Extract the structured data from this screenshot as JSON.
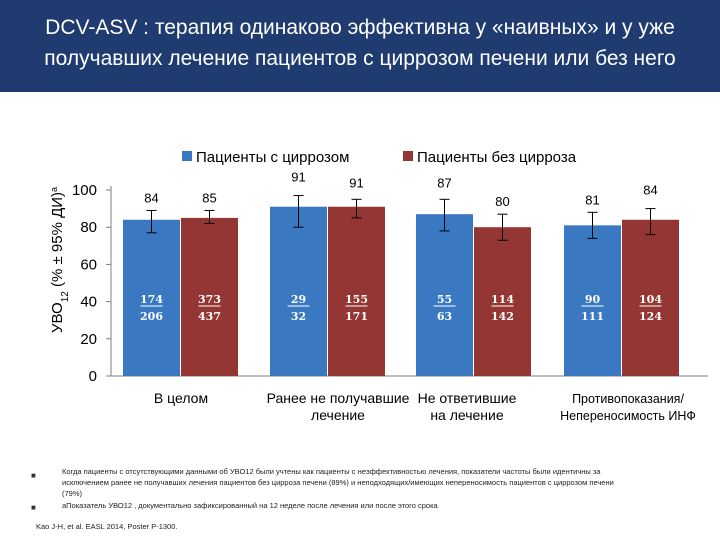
{
  "header": {
    "title_line1": "DCV-ASV : терапия одинаково эффективна у «наивных» и у уже",
    "title_line2": "получавших лечение пациентов с циррозом печени или без него"
  },
  "colors": {
    "title_bg": "#1f3b70",
    "cirrhosis": "#3a78c2",
    "no_cirrhosis": "#943634",
    "fraction_text": "#ffffff"
  },
  "chart_data": {
    "type": "bar",
    "title": "",
    "ylabel_main": "УВО",
    "ylabel_sub": "12",
    "ylabel_rest": " (% ± 95% ДИ)",
    "ylabel_sup": "а",
    "ylim": [
      0,
      100
    ],
    "yticks": [
      "0",
      "20",
      "40",
      "60",
      "80",
      "100"
    ],
    "legend": [
      "Пациенты с циррозом",
      "Пациенты без цирроза"
    ],
    "groups": [
      {
        "label_lines": [
          "В целом"
        ]
      },
      {
        "label_lines": [
          "Ранее не получавшие",
          "лечение"
        ]
      },
      {
        "label_lines": [
          "Не ответившие",
          "на лечение"
        ]
      },
      {
        "label_lines": [
          "Противопоказания/",
          "Непереносимость ИНФ"
        ]
      }
    ],
    "series": [
      {
        "name": "Пациенты с циррозом",
        "values": [
          84,
          91,
          87,
          81
        ],
        "labels": [
          "84",
          "91",
          "87",
          "81"
        ],
        "ci_low": [
          77,
          80,
          78,
          74
        ],
        "ci_high": [
          89,
          97,
          95,
          88
        ],
        "numerators": [
          "174",
          "29",
          "55",
          "90"
        ],
        "denominators": [
          "206",
          "32",
          "63",
          "111"
        ]
      },
      {
        "name": "Пациенты без цирроза",
        "values": [
          85,
          91,
          80,
          84
        ],
        "labels": [
          "85",
          "91",
          "80",
          "84"
        ],
        "ci_low": [
          82,
          85,
          73,
          76
        ],
        "ci_high": [
          89,
          95,
          87,
          90
        ],
        "numerators": [
          "373",
          "155",
          "114",
          "104"
        ],
        "denominators": [
          "437",
          "171",
          "142",
          "124"
        ]
      }
    ]
  },
  "footnotes": {
    "bullet_mark": "■",
    "note1_line1": "Когда пациенты с отсутствующими данными об УВО12 были учтены как пациенты с неэффективностью лечения, показатели частоты были идентичны за",
    "note1_line2": "исключением ранее не получавших лечения пациентов без цирроза печени (89%) и неподходящих/имеющих непереносимость пациентов с циррозом печени",
    "note1_line3": "(79%)",
    "note2": "аПоказатель УВО12 , документально зафиксированный на 12 неделе после лечения или после этого срока",
    "source": "Kao J-H, et al. EASL 2014, Poster P-1300."
  }
}
